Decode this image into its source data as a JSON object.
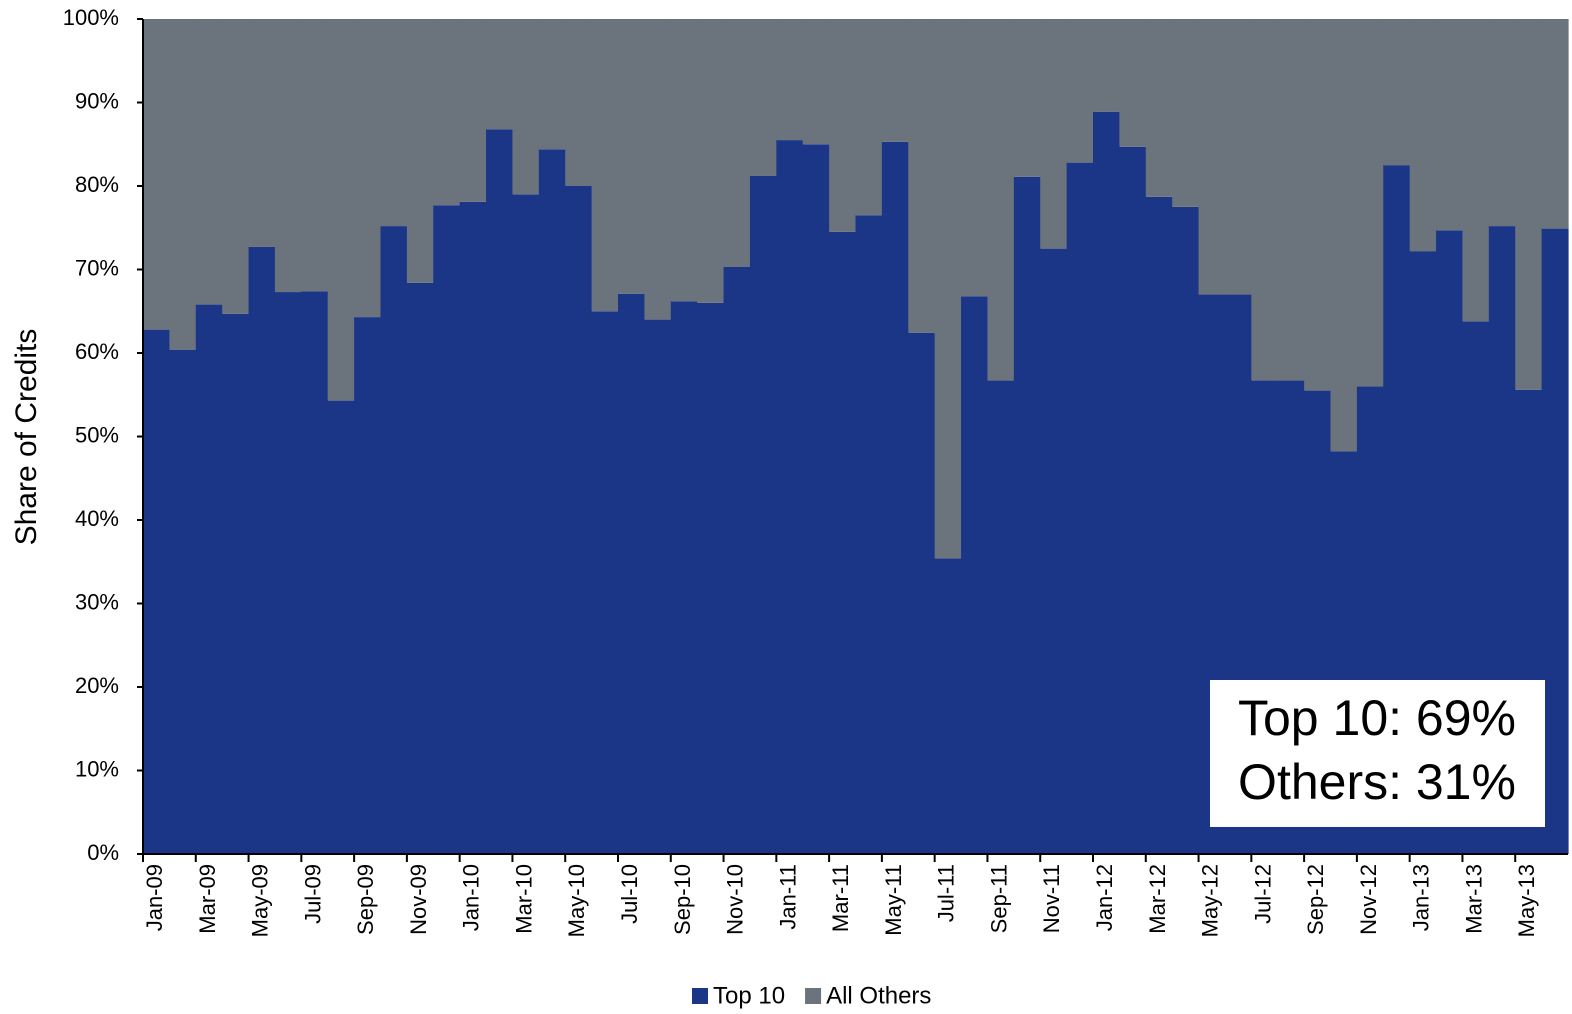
{
  "chart_data": {
    "type": "stacked_bar",
    "y_label": "Share of Credits",
    "categories": [
      "Jan-09",
      null,
      "Mar-09",
      null,
      "May-09",
      null,
      "Jul-09",
      null,
      "Sep-09",
      null,
      "Nov-09",
      null,
      "Jan-10",
      null,
      "Mar-10",
      null,
      "May-10",
      null,
      "Jul-10",
      null,
      "Sep-10",
      null,
      "Nov-10",
      null,
      "Jan-11",
      null,
      "Mar-11",
      null,
      "May-11",
      null,
      "Jul-11",
      null,
      "Sep-11",
      null,
      "Nov-11",
      null,
      "Jan-12",
      null,
      "Mar-12",
      null,
      "May-12",
      null,
      "Jul-12",
      null,
      "Sep-12",
      null,
      "Nov-12",
      null,
      "Jan-13",
      null,
      "Mar-13",
      null,
      "May-13",
      null
    ],
    "series": [
      {
        "name": "Top 10",
        "color": "#1c3687",
        "values": [
          62.8,
          60.4,
          65.8,
          64.7,
          72.7,
          67.3,
          67.4,
          54.3,
          64.3,
          75.2,
          68.4,
          77.7,
          78.1,
          86.8,
          79.0,
          84.4,
          80.0,
          65.0,
          67.1,
          64.0,
          66.2,
          66.0,
          70.3,
          81.2,
          85.5,
          85.0,
          74.5,
          76.5,
          85.3,
          62.4,
          35.4,
          66.8,
          56.7,
          81.1,
          72.5,
          82.8,
          88.9,
          84.7,
          78.7,
          77.5,
          67.0,
          67.0,
          56.7,
          56.7,
          55.5,
          48.2,
          56.0,
          82.5,
          72.2,
          74.7,
          63.8,
          75.2,
          55.6,
          74.9
        ]
      },
      {
        "name": "All Others",
        "color": "#6b737d",
        "values": [
          37.2,
          39.6,
          34.2,
          35.3,
          27.3,
          32.7,
          32.6,
          45.7,
          35.7,
          24.8,
          31.6,
          22.3,
          21.9,
          13.2,
          21.0,
          15.6,
          20.0,
          35.0,
          32.9,
          36.0,
          33.8,
          34.0,
          29.7,
          18.8,
          14.5,
          15.0,
          25.5,
          23.5,
          14.7,
          37.6,
          64.6,
          33.2,
          43.3,
          18.9,
          27.5,
          17.2,
          11.1,
          15.3,
          21.3,
          22.5,
          33.0,
          33.0,
          43.3,
          43.3,
          44.5,
          51.8,
          44.0,
          17.5,
          27.8,
          25.3,
          36.2,
          24.8,
          44.4,
          25.1
        ]
      }
    ],
    "ylim": [
      0,
      100
    ],
    "yticks": [
      {
        "value": 0,
        "label": "0%"
      },
      {
        "value": 10,
        "label": "10%"
      },
      {
        "value": 20,
        "label": "20%"
      },
      {
        "value": 30,
        "label": "30%"
      },
      {
        "value": 40,
        "label": "40%"
      },
      {
        "value": 50,
        "label": "50%"
      },
      {
        "value": 60,
        "label": "60%"
      },
      {
        "value": 70,
        "label": "70%"
      },
      {
        "value": 80,
        "label": "80%"
      },
      {
        "value": 90,
        "label": "90%"
      },
      {
        "value": 100,
        "label": "100%"
      }
    ],
    "annotations": [
      "Top 10: 69%",
      "Others: 31%"
    ],
    "legend": "bottom"
  }
}
